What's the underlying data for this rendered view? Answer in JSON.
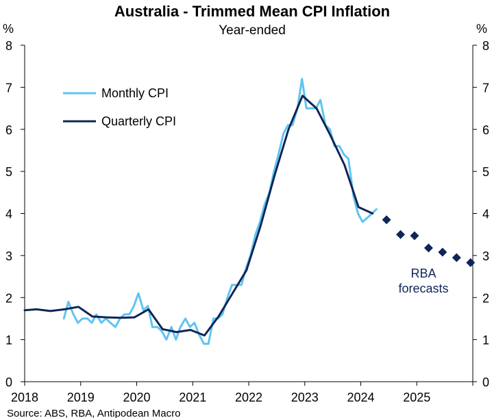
{
  "chart_data": {
    "type": "line",
    "title": "Australia - Trimmed Mean CPI Inflation",
    "subtitle": "Year-ended",
    "ylabel_left": "%",
    "ylabel_right": "%",
    "ylim": [
      0,
      8
    ],
    "yticks": [
      "0",
      "1",
      "2",
      "3",
      "4",
      "5",
      "6",
      "7",
      "8"
    ],
    "xlim": [
      2018.0,
      2026.0
    ],
    "xticks": [
      "2018",
      "2019",
      "2020",
      "2021",
      "2022",
      "2023",
      "2024",
      "2025"
    ],
    "grid": false,
    "legend_position": "top-left",
    "series": [
      {
        "name": "Monthly CPI",
        "color": "#5EC4F0",
        "type": "line",
        "x": [
          2018.7,
          2018.78,
          2018.87,
          2018.95,
          2019.03,
          2019.12,
          2019.2,
          2019.28,
          2019.37,
          2019.45,
          2019.53,
          2019.62,
          2019.7,
          2019.78,
          2019.87,
          2019.95,
          2020.03,
          2020.12,
          2020.2,
          2020.28,
          2020.37,
          2020.45,
          2020.53,
          2020.62,
          2020.7,
          2020.78,
          2020.87,
          2020.95,
          2021.03,
          2021.12,
          2021.2,
          2021.28,
          2021.37,
          2021.45,
          2021.53,
          2021.62,
          2021.7,
          2021.78,
          2021.87,
          2021.95,
          2022.03,
          2022.12,
          2022.2,
          2022.28,
          2022.37,
          2022.45,
          2022.53,
          2022.62,
          2022.7,
          2022.78,
          2022.87,
          2022.95,
          2023.03,
          2023.12,
          2023.2,
          2023.28,
          2023.37,
          2023.45,
          2023.53,
          2023.62,
          2023.7,
          2023.78,
          2023.87,
          2023.95,
          2024.03,
          2024.12,
          2024.2,
          2024.28
        ],
        "y": [
          1.5,
          1.9,
          1.6,
          1.4,
          1.5,
          1.5,
          1.4,
          1.6,
          1.4,
          1.5,
          1.4,
          1.3,
          1.5,
          1.6,
          1.6,
          1.8,
          2.1,
          1.7,
          1.8,
          1.3,
          1.3,
          1.2,
          1.0,
          1.3,
          1.0,
          1.3,
          1.5,
          1.3,
          1.4,
          1.1,
          0.9,
          0.9,
          1.5,
          1.5,
          1.6,
          2.0,
          2.3,
          2.3,
          2.3,
          2.7,
          3.0,
          3.5,
          3.8,
          4.2,
          4.5,
          5.0,
          5.4,
          5.9,
          6.1,
          6.1,
          6.5,
          7.2,
          6.5,
          6.5,
          6.5,
          6.7,
          6.1,
          6.0,
          5.6,
          5.6,
          5.4,
          5.3,
          4.4,
          4.0,
          3.8,
          3.9,
          4.0,
          4.1
        ]
      },
      {
        "name": "Quarterly CPI",
        "color": "#0F2557",
        "type": "line",
        "x": [
          2018.0,
          2018.21,
          2018.46,
          2018.71,
          2018.96,
          2019.21,
          2019.46,
          2019.71,
          2019.96,
          2020.21,
          2020.46,
          2020.71,
          2020.96,
          2021.21,
          2021.46,
          2021.71,
          2021.96,
          2022.21,
          2022.46,
          2022.71,
          2022.96,
          2023.21,
          2023.46,
          2023.71,
          2023.96,
          2024.21
        ],
        "y": [
          1.7,
          1.72,
          1.68,
          1.72,
          1.78,
          1.55,
          1.53,
          1.52,
          1.53,
          1.72,
          1.25,
          1.18,
          1.23,
          1.1,
          1.55,
          2.1,
          2.65,
          3.7,
          4.9,
          6.0,
          6.8,
          6.5,
          5.85,
          5.15,
          4.15,
          4.0
        ]
      },
      {
        "name": "RBA forecasts",
        "color": "#0F2557",
        "type": "scatter",
        "marker": "diamond",
        "x": [
          2024.46,
          2024.71,
          2024.96,
          2025.21,
          2025.46,
          2025.71,
          2025.96
        ],
        "y": [
          3.85,
          3.5,
          3.47,
          3.18,
          3.08,
          2.95,
          2.83
        ]
      }
    ],
    "annotations": [
      {
        "text_lines": [
          "RBA",
          "forecasts"
        ],
        "x": 2025.1,
        "y": 2.6
      }
    ],
    "source": "Source: ABS, RBA, Antipodean Macro"
  }
}
